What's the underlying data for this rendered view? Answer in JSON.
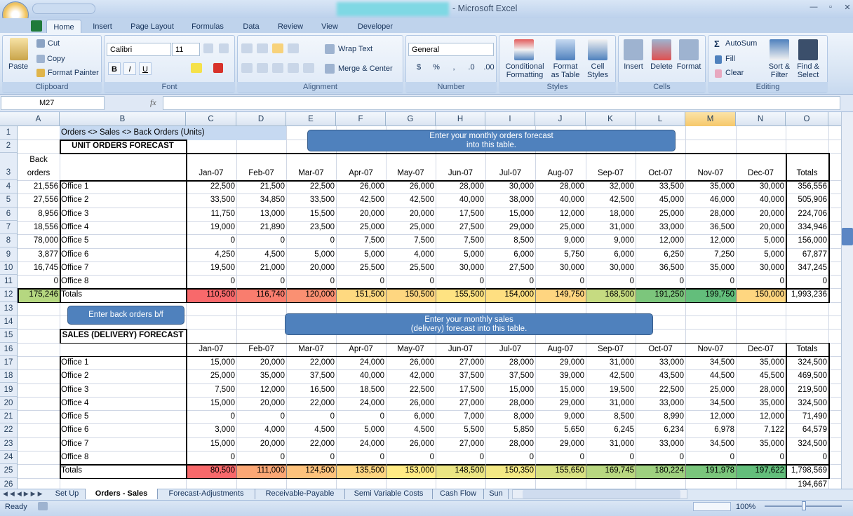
{
  "window": {
    "title": "- Microsoft Excel"
  },
  "ribbon": {
    "tabs": [
      "Home",
      "Insert",
      "Page Layout",
      "Formulas",
      "Data",
      "Review",
      "View",
      "Developer"
    ],
    "clipboard": {
      "label": "Clipboard",
      "paste": "Paste",
      "cut": "Cut",
      "copy": "Copy",
      "format_painter": "Format Painter"
    },
    "font": {
      "label": "Font",
      "name": "Calibri",
      "size": "11"
    },
    "alignment": {
      "label": "Alignment",
      "wrap_text": "Wrap Text",
      "merge_center": "Merge & Center"
    },
    "number": {
      "label": "Number",
      "format": "General"
    },
    "styles": {
      "label": "Styles",
      "conditional": [
        "Conditional",
        "Formatting"
      ],
      "format_table": [
        "Format",
        "as Table"
      ],
      "cell_styles": [
        "Cell",
        "Styles"
      ]
    },
    "cells": {
      "label": "Cells",
      "insert": "Insert",
      "delete": "Delete",
      "format": "Format"
    },
    "editing": {
      "label": "Editing",
      "autosum": "AutoSum",
      "fill": "Fill",
      "clear": "Clear",
      "sort_filter": [
        "Sort &",
        "Filter"
      ],
      "find_select": [
        "Find &",
        "Select"
      ]
    }
  },
  "formula_bar": {
    "name_box": "M27",
    "fx": "fx"
  },
  "sheet": {
    "columns": [
      "A",
      "B",
      "C",
      "D",
      "E",
      "F",
      "G",
      "H",
      "I",
      "J",
      "K",
      "L",
      "M",
      "N",
      "O"
    ],
    "rows": [
      1,
      2,
      3,
      4,
      5,
      6,
      7,
      8,
      9,
      10,
      11,
      12,
      13,
      14,
      15,
      16,
      17,
      18,
      19,
      20,
      21,
      22,
      23,
      24,
      25,
      26
    ],
    "title": "Orders <> Sales <> Back Orders (Units)",
    "orders": {
      "title": "UNIT ORDERS FORECAST",
      "back_header": [
        "Back",
        "orders"
      ],
      "months": [
        "Jan-07",
        "Feb-07",
        "Mar-07",
        "Apr-07",
        "May-07",
        "Jun-07",
        "Jul-07",
        "Aug-07",
        "Sep-07",
        "Oct-07",
        "Nov-07",
        "Dec-07"
      ],
      "totals_header": "Totals",
      "rows": [
        {
          "back": "21,556",
          "name": "Office 1",
          "values": [
            "22,500",
            "21,500",
            "22,500",
            "26,000",
            "26,000",
            "28,000",
            "30,000",
            "28,000",
            "32,000",
            "33,500",
            "35,000",
            "30,000"
          ],
          "total": "356,556"
        },
        {
          "back": "27,556",
          "name": "Office 2",
          "values": [
            "33,500",
            "34,850",
            "33,500",
            "42,500",
            "42,500",
            "40,000",
            "38,000",
            "40,000",
            "42,500",
            "45,000",
            "46,000",
            "40,000"
          ],
          "total": "505,906"
        },
        {
          "back": "8,956",
          "name": "Office 3",
          "values": [
            "11,750",
            "13,000",
            "15,500",
            "20,000",
            "20,000",
            "17,500",
            "15,000",
            "12,000",
            "18,000",
            "25,000",
            "28,000",
            "20,000"
          ],
          "total": "224,706"
        },
        {
          "back": "18,556",
          "name": "Office 4",
          "values": [
            "19,000",
            "21,890",
            "23,500",
            "25,000",
            "25,000",
            "27,500",
            "29,000",
            "25,000",
            "31,000",
            "33,000",
            "36,500",
            "20,000"
          ],
          "total": "334,946"
        },
        {
          "back": "78,000",
          "name": "Office 5",
          "values": [
            "0",
            "0",
            "0",
            "7,500",
            "7,500",
            "7,500",
            "8,500",
            "9,000",
            "9,000",
            "12,000",
            "12,000",
            "5,000"
          ],
          "total": "156,000"
        },
        {
          "back": "3,877",
          "name": "Office 6",
          "values": [
            "4,250",
            "4,500",
            "5,000",
            "5,000",
            "4,000",
            "5,000",
            "6,000",
            "5,750",
            "6,000",
            "6,250",
            "7,250",
            "5,000"
          ],
          "total": "67,877"
        },
        {
          "back": "16,745",
          "name": "Office 7",
          "values": [
            "19,500",
            "21,000",
            "20,000",
            "25,500",
            "25,500",
            "30,000",
            "27,500",
            "30,000",
            "30,000",
            "36,500",
            "35,000",
            "30,000"
          ],
          "total": "347,245"
        },
        {
          "back": "0",
          "name": "Office 8",
          "values": [
            "0",
            "0",
            "0",
            "0",
            "0",
            "0",
            "0",
            "0",
            "0",
            "0",
            "0",
            "0"
          ],
          "total": "0"
        }
      ],
      "totals": {
        "back": "175,246",
        "back_fill": "#b5d780",
        "label": "Totals",
        "values": [
          "110,500",
          "116,740",
          "120,000",
          "151,500",
          "150,500",
          "155,500",
          "154,000",
          "149,750",
          "168,500",
          "191,250",
          "199,750",
          "150,000"
        ],
        "fills": [
          "#f8696b",
          "#f97d6e",
          "#fa9072",
          "#fed980",
          "#fed680",
          "#fee382",
          "#fedf81",
          "#fed580",
          "#c6db81",
          "#7cc67c",
          "#63be7b",
          "#fed680"
        ],
        "total": "1,993,236"
      }
    },
    "sales": {
      "title": "SALES (DELIVERY) FORECAST",
      "months": [
        "Jan-07",
        "Feb-07",
        "Mar-07",
        "Apr-07",
        "May-07",
        "Jun-07",
        "Jul-07",
        "Aug-07",
        "Sep-07",
        "Oct-07",
        "Nov-07",
        "Dec-07"
      ],
      "totals_header": "Totals",
      "rows": [
        {
          "name": "Office 1",
          "values": [
            "15,000",
            "20,000",
            "22,000",
            "24,000",
            "26,000",
            "27,000",
            "28,000",
            "29,000",
            "31,000",
            "33,000",
            "34,500",
            "35,000"
          ],
          "total": "324,500"
        },
        {
          "name": "Office 2",
          "values": [
            "25,000",
            "35,000",
            "37,500",
            "40,000",
            "42,000",
            "37,500",
            "37,500",
            "39,000",
            "42,500",
            "43,500",
            "44,500",
            "45,500"
          ],
          "total": "469,500"
        },
        {
          "name": "Office 3",
          "values": [
            "7,500",
            "12,000",
            "16,500",
            "18,500",
            "22,500",
            "17,500",
            "15,000",
            "15,000",
            "19,500",
            "22,500",
            "25,000",
            "28,000"
          ],
          "total": "219,500"
        },
        {
          "name": "Office 4",
          "values": [
            "15,000",
            "20,000",
            "22,000",
            "24,000",
            "26,000",
            "27,000",
            "28,000",
            "29,000",
            "31,000",
            "33,000",
            "34,500",
            "35,000"
          ],
          "total": "324,500"
        },
        {
          "name": "Office 5",
          "values": [
            "0",
            "0",
            "0",
            "0",
            "6,000",
            "7,000",
            "8,000",
            "9,000",
            "8,500",
            "8,990",
            "12,000",
            "12,000"
          ],
          "total": "71,490"
        },
        {
          "name": "Office 6",
          "values": [
            "3,000",
            "4,000",
            "4,500",
            "5,000",
            "4,500",
            "5,500",
            "5,850",
            "5,650",
            "6,245",
            "6,234",
            "6,978",
            "7,122"
          ],
          "total": "64,579"
        },
        {
          "name": "Office 7",
          "values": [
            "15,000",
            "20,000",
            "22,000",
            "24,000",
            "26,000",
            "27,000",
            "28,000",
            "29,000",
            "31,000",
            "33,000",
            "34,500",
            "35,000"
          ],
          "total": "324,500"
        },
        {
          "name": "Office 8",
          "values": [
            "0",
            "0",
            "0",
            "0",
            "0",
            "0",
            "0",
            "0",
            "0",
            "0",
            "0",
            "0"
          ],
          "total": "0"
        }
      ],
      "totals": {
        "label": "Totals",
        "values": [
          "80,500",
          "111,000",
          "124,500",
          "135,500",
          "153,000",
          "148,500",
          "150,350",
          "155,650",
          "169,745",
          "180,224",
          "191,978",
          "197,622"
        ],
        "fills": [
          "#f8696b",
          "#fba775",
          "#fdc27c",
          "#fed580",
          "#ffeb84",
          "#ebe583",
          "#f3e884",
          "#d8e082",
          "#b8d780",
          "#9ed07f",
          "#7ac67c",
          "#63be7b"
        ],
        "total": "1,798,569"
      }
    },
    "overflow": "194,667",
    "notes": {
      "orders": [
        "Enter your monthly  orders forecast",
        "into this table."
      ],
      "back_orders": [
        "Enter back orders b/f"
      ],
      "sales": [
        "Enter your monthly sales",
        "(delivery) forecast into this table."
      ]
    }
  },
  "sheet_tabs": [
    "Set Up",
    "Orders - Sales",
    "Forecast-Adjustments",
    "Receivable-Payable",
    "Semi Variable Costs",
    "Cash Flow",
    "Sun"
  ],
  "active_tab": "Orders - Sales",
  "status": {
    "mode": "Ready",
    "zoom": "100%"
  }
}
